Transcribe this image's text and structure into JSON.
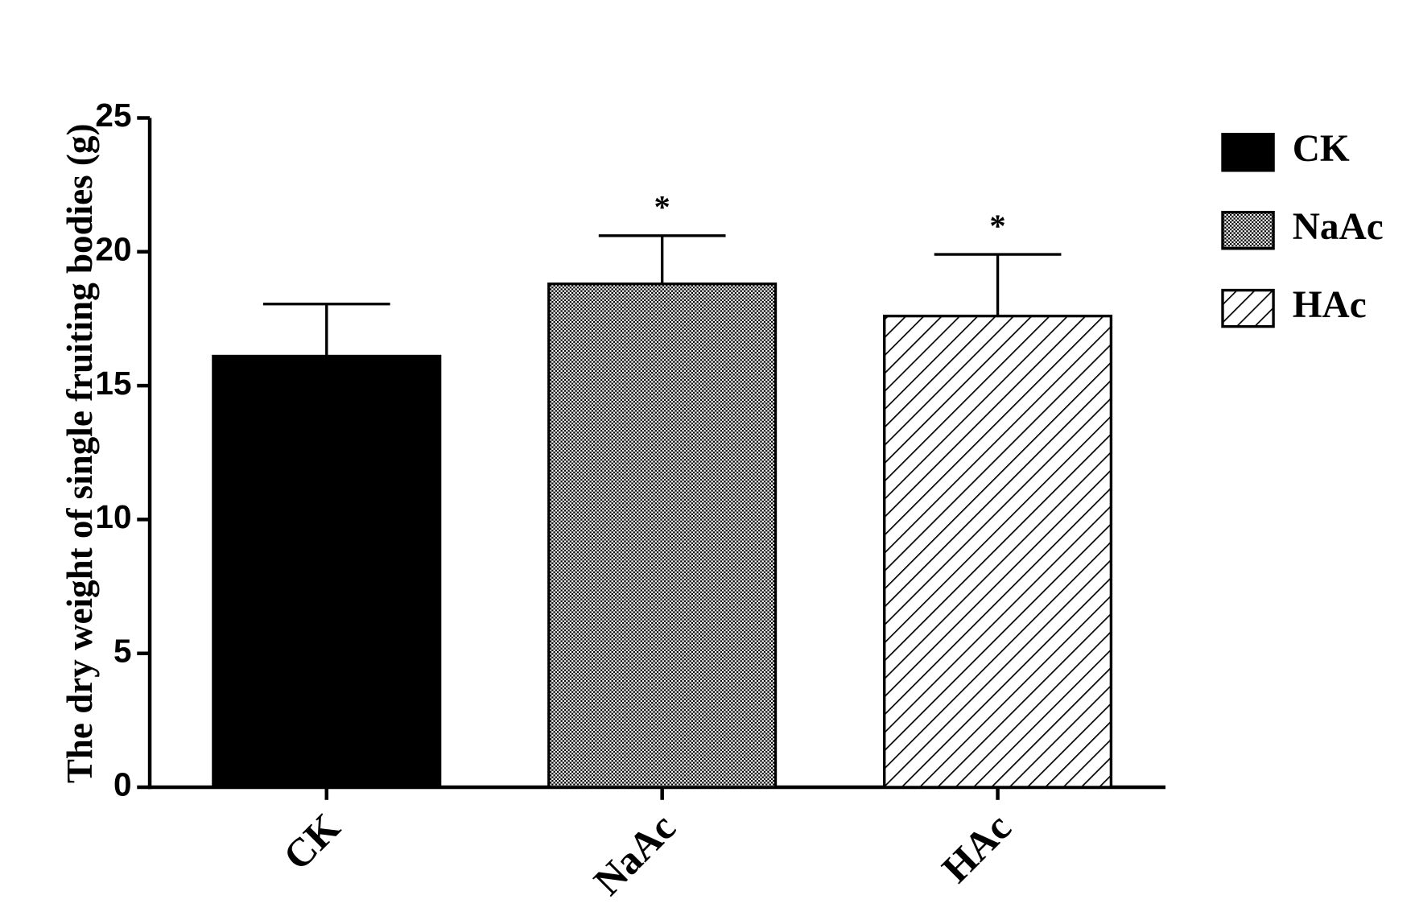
{
  "chart_data": {
    "type": "bar",
    "y_label": "The dry weight of single fruiting bodies (g)",
    "categories": [
      "CK",
      "NaAc",
      "HAc"
    ],
    "values": [
      16.1,
      18.8,
      17.6
    ],
    "errors": [
      1.95,
      1.8,
      2.3
    ],
    "significance": [
      null,
      "*",
      "*"
    ],
    "fills": [
      "solid",
      "checker",
      "hatch"
    ],
    "color": "#000000",
    "ylim": [
      0,
      25
    ],
    "yticks": [
      0,
      5,
      10,
      15,
      20,
      25
    ],
    "grid": false
  }
}
